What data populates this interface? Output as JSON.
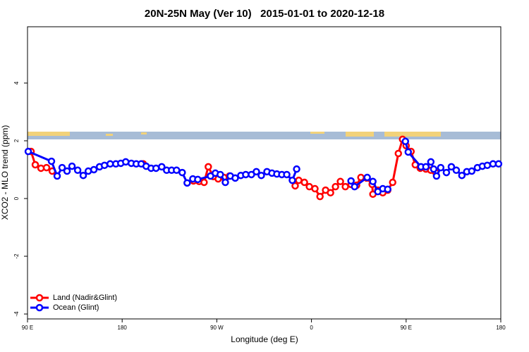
{
  "chart_data": {
    "type": "line",
    "title": "20N-25N May (Ver 10)   2015-01-01 to 2020-12-18",
    "x_label": "Longitude (deg E)",
    "y_label": "XCO2 - MLO trend (ppm)",
    "xlim": [
      90,
      540
    ],
    "xticks": [
      {
        "value": 90,
        "label": "90 E"
      },
      {
        "value": 180,
        "label": "180"
      },
      {
        "value": 270,
        "label": "90 W"
      },
      {
        "value": 360,
        "label": "0"
      },
      {
        "value": 450,
        "label": "90 E"
      },
      {
        "value": 540,
        "label": "180"
      }
    ],
    "ylim": [
      -4.17,
      5.95
    ],
    "yticks": [
      -4,
      -2,
      0,
      2,
      4
    ],
    "legend": "bottom-left",
    "series": [
      {
        "name": "Land (Nadir&Glint)",
        "color": "#ff0000",
        "x": [
          93.4,
          97.4,
          102.8,
          108.1,
          113.5,
          150,
          200.1,
          220,
          247.8,
          253.2,
          257.9,
          261.9,
          266.6,
          271.3,
          276.7,
          282.1,
          310,
          344.5,
          347.9,
          353.3,
          358,
          363.3,
          368.1,
          373.4,
          378.1,
          382.8,
          387.5,
          392.2,
          397.6,
          402.9,
          407,
          412.4,
          417.7,
          418.4,
          423.1,
          427.8,
          432.5,
          437.2,
          442.6,
          446.6,
          450,
          454.7,
          458.7,
          463.4,
          468.8,
          473.5,
          478.2
        ],
        "values": [
          1.63,
          1.17,
          1.05,
          1.07,
          0.95,
          null,
          1.2,
          null,
          0.61,
          0.59,
          0.56,
          1.1,
          0.76,
          0.68,
          0.73,
          0.78,
          null,
          0.44,
          0.63,
          0.56,
          0.41,
          0.34,
          0.07,
          0.29,
          0.2,
          0.41,
          0.59,
          0.41,
          0.49,
          0.46,
          0.73,
          0.71,
          0.49,
          0.15,
          0.29,
          0.2,
          0.29,
          0.56,
          1.56,
          2.05,
          1.83,
          1.63,
          1.17,
          1.05,
          1.02,
          0.98,
          0.9
        ]
      },
      {
        "name": "Ocean (Glint)",
        "color": "#0000ff",
        "x": [
          90.7,
          112.8,
          118.2,
          122.9,
          127.6,
          132.3,
          137.7,
          143,
          147.8,
          153.1,
          158.5,
          163.2,
          168.6,
          174,
          178.7,
          183.4,
          188.7,
          193.4,
          198.1,
          202.8,
          207.5,
          212.2,
          217.6,
          222.3,
          227,
          231.7,
          237.1,
          241.8,
          247.2,
          251.9,
          264,
          268.6,
          273.3,
          278.1,
          282.8,
          287.5,
          292.8,
          297.5,
          302.9,
          307.6,
          312.3,
          317.7,
          322.4,
          327.1,
          331.8,
          336.5,
          341.8,
          345.9,
          370,
          397.6,
          401,
          413,
          418.4,
          423.1,
          427.8,
          432.5,
          440,
          449.3,
          452,
          464.1,
          468.8,
          473.5,
          476.2,
          478.9,
          482.9,
          488.3,
          493,
          497.7,
          503,
          507.7,
          512.4,
          517.8,
          522.5,
          527.2,
          532.6,
          537.9
        ],
        "values": [
          1.63,
          1.29,
          0.78,
          1.07,
          0.95,
          1.12,
          0.98,
          0.8,
          0.95,
          1.0,
          1.1,
          1.15,
          1.2,
          1.2,
          1.22,
          1.27,
          1.22,
          1.2,
          1.2,
          1.12,
          1.05,
          1.05,
          1.1,
          0.98,
          0.98,
          0.98,
          0.9,
          0.54,
          0.68,
          0.66,
          0.78,
          0.88,
          0.83,
          0.56,
          0.78,
          0.71,
          0.8,
          0.83,
          0.83,
          0.93,
          0.8,
          0.93,
          0.88,
          0.85,
          0.83,
          0.83,
          0.63,
          1.02,
          null,
          0.61,
          0.41,
          0.73,
          0.59,
          0.24,
          0.34,
          0.32,
          null,
          1.98,
          1.61,
          1.1,
          1.1,
          1.27,
          1.02,
          0.78,
          1.07,
          0.9,
          1.1,
          0.98,
          0.8,
          0.93,
          0.95,
          1.07,
          1.12,
          1.15,
          1.2,
          1.2
        ]
      }
    ]
  }
}
